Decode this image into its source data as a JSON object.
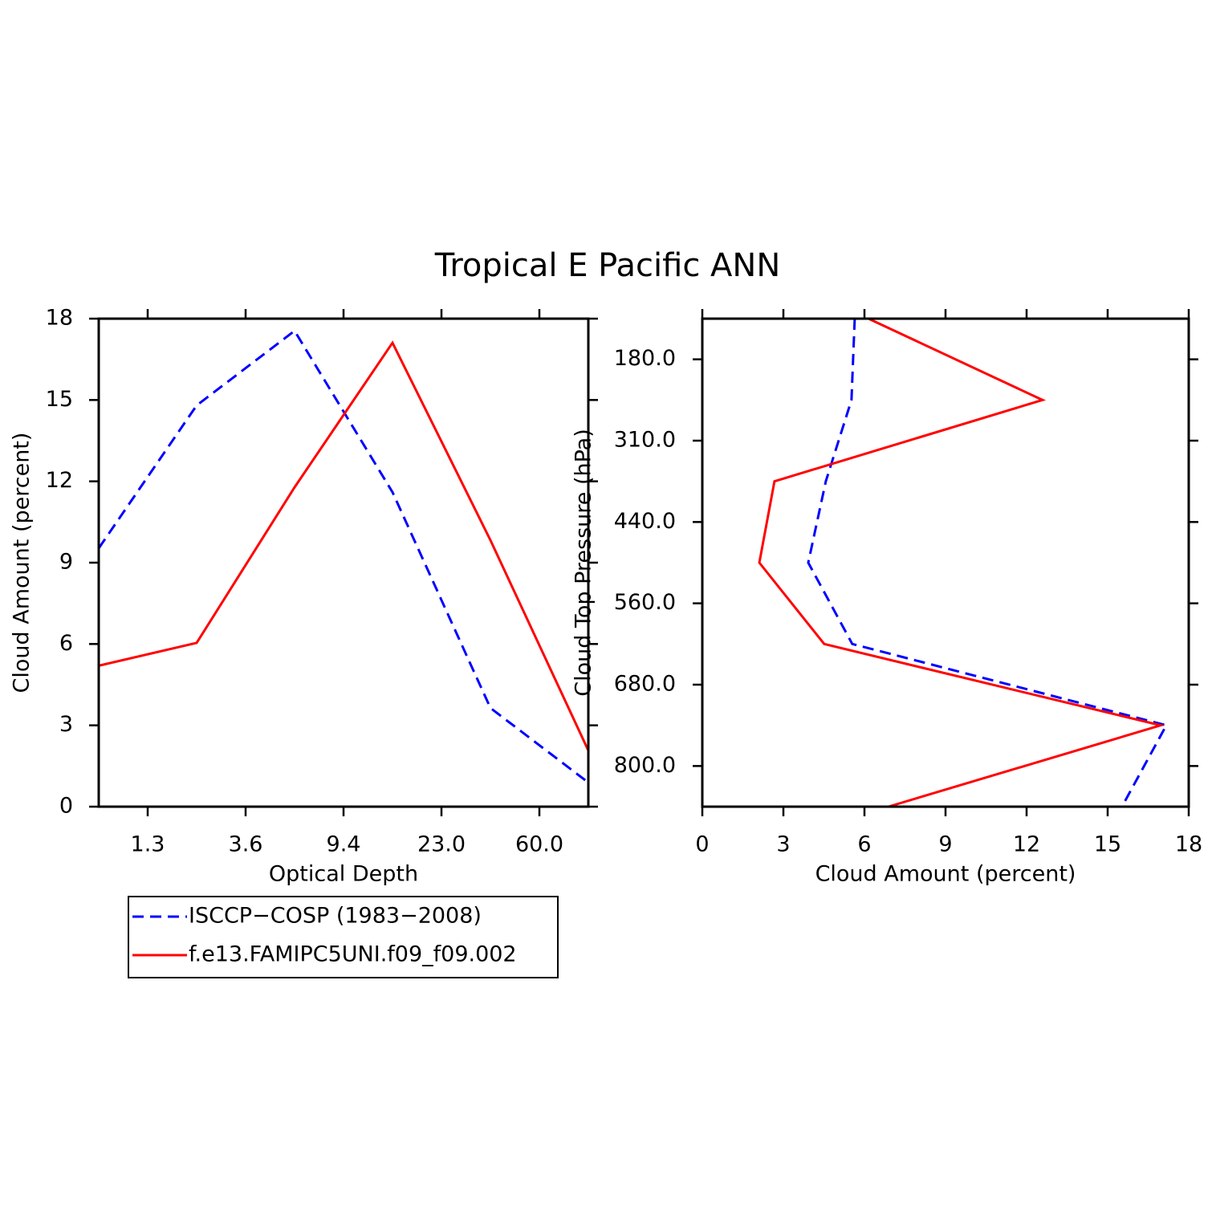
{
  "title": "Tropical E Pacific ANN",
  "chart_data": [
    {
      "type": "line",
      "xlabel": "Optical Depth",
      "ylabel": "Cloud Amount (percent)",
      "x": [
        0,
        1,
        2,
        3,
        4,
        5
      ],
      "xlim": [
        0,
        5
      ],
      "xticks": [
        {
          "value": 0.5,
          "label": "1.3"
        },
        {
          "value": 1.5,
          "label": "3.6"
        },
        {
          "value": 2.5,
          "label": "9.4"
        },
        {
          "value": 3.5,
          "label": "23.0"
        },
        {
          "value": 4.5,
          "label": "60.0"
        }
      ],
      "ylim": [
        0,
        18
      ],
      "yticks": [
        0,
        3,
        6,
        9,
        12,
        15,
        18
      ],
      "legend": "below-left",
      "series": [
        {
          "name": "ISCCP−COSP (1983−2008)",
          "color": "#0000ff",
          "style": "dashed",
          "values": [
            9.53,
            14.8,
            17.55,
            11.6,
            3.64,
            0.89
          ]
        },
        {
          "name": "f.e13.FAMIPC5UNI.f09_f09.002",
          "color": "#ff0000",
          "style": "solid",
          "values": [
            5.2,
            6.04,
            11.78,
            17.11,
            9.83,
            2.07
          ]
        }
      ]
    },
    {
      "type": "line",
      "orientation": "horizontal",
      "xlabel": "Cloud Amount (percent)",
      "ylabel": "Cloud Top Pressure (hPa)",
      "y": [
        0,
        1,
        2,
        3,
        4,
        5,
        6
      ],
      "ylim": [
        6,
        0
      ],
      "yticks": [
        {
          "value": 0.5,
          "label": "180.0"
        },
        {
          "value": 1.5,
          "label": "310.0"
        },
        {
          "value": 2.5,
          "label": "440.0"
        },
        {
          "value": 3.5,
          "label": "560.0"
        },
        {
          "value": 4.5,
          "label": "680.0"
        },
        {
          "value": 5.5,
          "label": "800.0"
        }
      ],
      "xlim": [
        0,
        18
      ],
      "xticks": [
        0,
        3,
        6,
        9,
        12,
        15,
        18
      ],
      "series": [
        {
          "color": "#0000ff",
          "style": "dashed",
          "values": [
            5.64,
            5.52,
            4.57,
            3.92,
            5.55,
            17.17,
            15.53
          ]
        },
        {
          "color": "#ff0000",
          "style": "solid",
          "values": [
            6.15,
            12.59,
            2.67,
            2.11,
            4.51,
            16.96,
            6.89
          ]
        }
      ]
    }
  ]
}
